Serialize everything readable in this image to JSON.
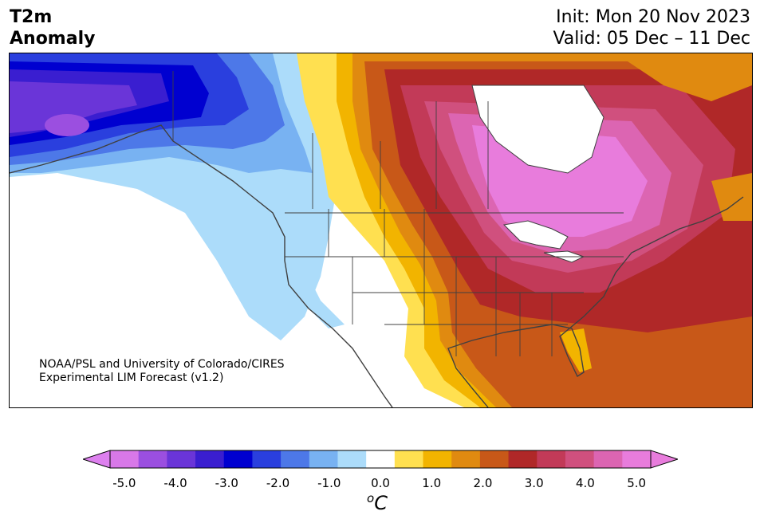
{
  "header": {
    "title_line1": "T2m",
    "title_line2": "Anomaly",
    "init": "Init: Mon 20 Nov 2023",
    "valid": "Valid: 05 Dec – 11 Dec"
  },
  "credit": {
    "line1": "NOAA/PSL and University of Colorado/CIRES",
    "line2": "Experimental LIM Forecast (v1.2)"
  },
  "colorbar": {
    "ticks": [
      "-5.0",
      "-4.0",
      "-3.0",
      "-2.0",
      "-1.0",
      "0.0",
      "1.0",
      "2.0",
      "3.0",
      "4.0",
      "5.0"
    ],
    "colors": [
      "#d878e8",
      "#9b4fe0",
      "#6a35d8",
      "#3a1ed0",
      "#0000d0",
      "#2a3fde",
      "#4d78e8",
      "#78b2f2",
      "#acdcfa",
      "#ffffff",
      "#ffe050",
      "#f2b400",
      "#e08a10",
      "#c85818",
      "#b02828",
      "#c23a58",
      "#d0507e",
      "#dc65b2",
      "#e87cdc"
    ],
    "under_color": "#dd80ee",
    "over_color": "#e87cdc",
    "unit_base": "C",
    "unit_sup": "o"
  }
}
